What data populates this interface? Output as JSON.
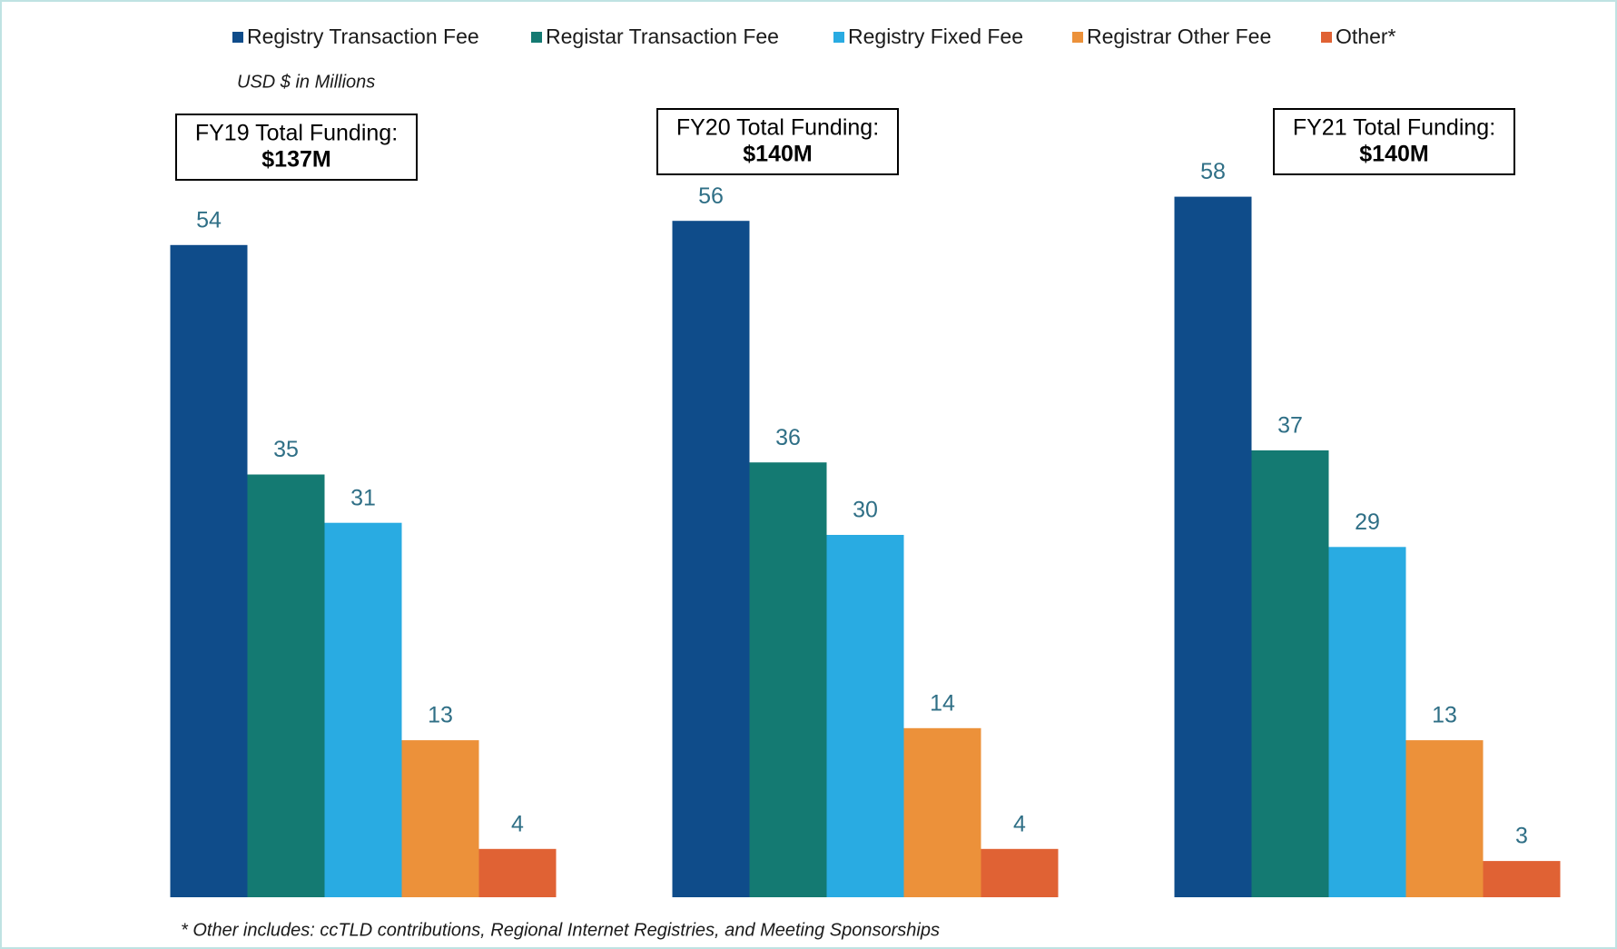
{
  "chart_data": {
    "type": "bar",
    "subtitle": "USD $ in Millions",
    "footnote": "* Other includes: ccTLD contributions, Regional Internet Registries, and Meeting Sponsorships",
    "annotations": [
      {
        "text": "FY19 Total Funding:",
        "total": "$137M"
      },
      {
        "text": "FY20 Total Funding:",
        "total": "$140M"
      },
      {
        "text": "FY21 Total Funding:",
        "total": "$140M"
      }
    ],
    "series": [
      {
        "name": "Registry Transaction Fee",
        "color": "#0f4c8a",
        "values": [
          54,
          56,
          58
        ]
      },
      {
        "name": "Registar Transaction Fee",
        "color": "#147a72",
        "values": [
          35,
          36,
          37
        ]
      },
      {
        "name": "Registry Fixed Fee",
        "color": "#29abe2",
        "values": [
          31,
          30,
          29
        ]
      },
      {
        "name": "Registrar Other Fee",
        "color": "#ec913a",
        "values": [
          13,
          14,
          13
        ]
      },
      {
        "name": "Other*",
        "color": "#e06234",
        "values": [
          4,
          4,
          3
        ]
      }
    ]
  }
}
